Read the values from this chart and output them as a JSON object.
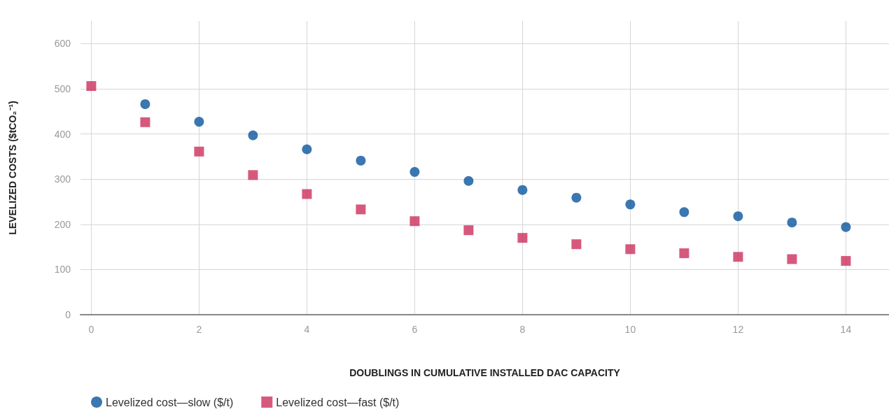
{
  "chart_data": {
    "type": "scatter",
    "xlabel": "DOUBLINGS IN CUMULATIVE INSTALLED DAC CAPACITY",
    "ylabel": "LEVELIZED COSTS ($tCO₂⁻¹)",
    "series": [
      {
        "name": "Levelized cost—slow ($/t)",
        "color": "#0a559e",
        "marker": "circle",
        "x": [
          1,
          2,
          3,
          4,
          5,
          6,
          7,
          8,
          9,
          10,
          11,
          12,
          13,
          14
        ],
        "values": [
          466,
          427,
          397,
          366,
          341,
          316,
          296,
          276,
          259,
          244,
          227,
          218,
          204,
          194
        ]
      },
      {
        "name": "Levelized cost—fast ($/t)",
        "color": "#cc2f5c",
        "marker": "square",
        "x": [
          0,
          1,
          2,
          3,
          4,
          5,
          6,
          7,
          8,
          9,
          10,
          11,
          12,
          13,
          14
        ],
        "values": [
          506,
          426,
          361,
          309,
          267,
          233,
          207,
          187,
          170,
          156,
          145,
          136,
          128,
          123,
          119
        ]
      }
    ],
    "xlim": [
      -0.2,
      14.8
    ],
    "xticks": [
      0,
      2,
      4,
      6,
      8,
      10,
      12,
      14
    ],
    "ylim": [
      0,
      650
    ],
    "yticks": [
      0,
      100,
      200,
      300,
      400,
      500,
      600
    ],
    "grid": true,
    "legend": "bottom left"
  }
}
